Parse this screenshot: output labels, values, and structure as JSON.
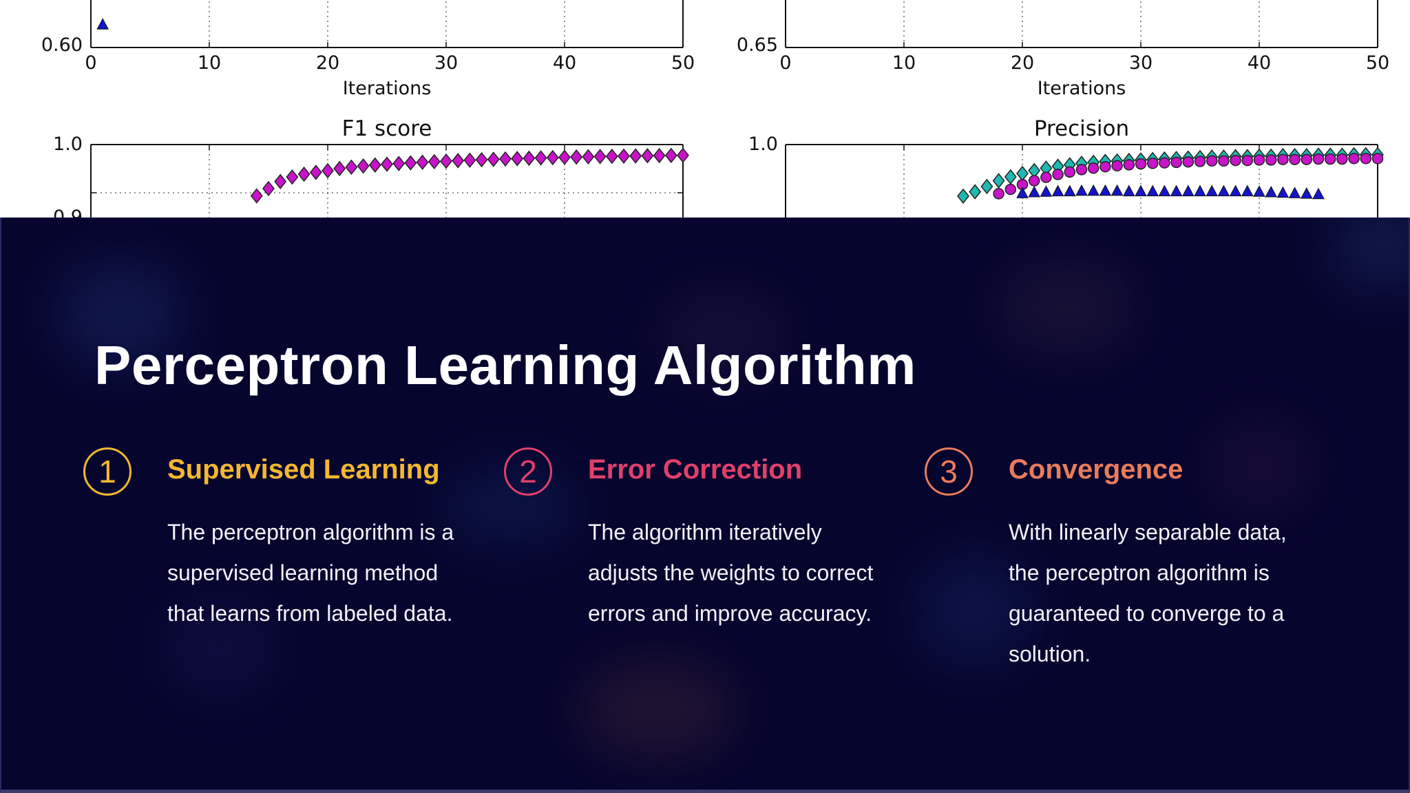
{
  "plots": {
    "top_left": {
      "y_tick": "0.60",
      "x_ticks": [
        "0",
        "10",
        "20",
        "30",
        "40",
        "50"
      ],
      "xlabel": "Iterations"
    },
    "top_right": {
      "y_tick": "0.65",
      "x_ticks": [
        "0",
        "10",
        "20",
        "30",
        "40",
        "50"
      ],
      "xlabel": "Iterations"
    },
    "f1": {
      "title": "F1 score",
      "y_ticks": [
        "1.0",
        "0.9"
      ]
    },
    "precision": {
      "title": "Precision",
      "y_ticks": [
        "1.0"
      ]
    }
  },
  "chart_data": [
    {
      "type": "scatter",
      "title": "",
      "xlabel": "Iterations",
      "ylabel": "",
      "xlim": [
        0,
        50
      ],
      "ylim": [
        0.6,
        0.7
      ],
      "series": [
        {
          "marker": "triangle",
          "color": "#1414c8",
          "x": [
            1
          ],
          "y": [
            0.63
          ]
        }
      ],
      "grid": true
    },
    {
      "type": "scatter",
      "title": "",
      "xlabel": "Iterations",
      "ylabel": "",
      "xlim": [
        0,
        50
      ],
      "ylim": [
        0.65,
        0.75
      ],
      "series": [],
      "grid": true
    },
    {
      "type": "scatter",
      "title": "F1 score",
      "xlabel": "",
      "ylabel": "",
      "xlim": [
        0,
        50
      ],
      "ylim": [
        0.5,
        1.0
      ],
      "series": [
        {
          "marker": "diamond",
          "color": "#c814c8",
          "x": [
            14,
            15,
            16,
            17,
            18,
            19,
            20,
            21,
            22,
            23,
            24,
            25,
            26,
            27,
            28,
            29,
            30,
            31,
            32,
            33,
            34,
            35,
            36,
            37,
            38,
            39,
            40,
            41,
            42,
            43,
            44,
            45,
            46,
            47,
            48,
            49,
            50
          ],
          "y": [
            0.8935,
            0.9087,
            0.9232,
            0.9326,
            0.9385,
            0.9423,
            0.9458,
            0.9502,
            0.9531,
            0.9555,
            0.9575,
            0.9592,
            0.9607,
            0.962,
            0.9633,
            0.9645,
            0.9656,
            0.9666,
            0.9676,
            0.9685,
            0.9693,
            0.9701,
            0.9709,
            0.9716,
            0.9723,
            0.9729,
            0.9735,
            0.9741,
            0.9746,
            0.9751,
            0.9756,
            0.976,
            0.9764,
            0.9768,
            0.9771,
            0.9774,
            0.9777
          ]
        }
      ],
      "grid": true
    },
    {
      "type": "scatter",
      "title": "Precision",
      "xlabel": "",
      "ylabel": "",
      "xlim": [
        0,
        50
      ],
      "ylim": [
        0.5,
        1.0
      ],
      "series": [
        {
          "marker": "diamond",
          "color": "#20b8b0",
          "x": [
            15,
            16,
            17,
            18,
            19,
            20,
            21,
            22,
            23,
            24,
            25,
            26,
            27,
            28,
            29,
            30,
            31,
            32,
            33,
            34,
            35,
            36,
            37,
            38,
            39,
            40,
            41,
            42,
            43,
            44,
            45,
            46,
            47,
            48,
            49,
            50
          ],
          "y": [
            0.893,
            0.902,
            0.913,
            0.925,
            0.933,
            0.94,
            0.946,
            0.951,
            0.955,
            0.958,
            0.961,
            0.963,
            0.965,
            0.966,
            0.967,
            0.968,
            0.969,
            0.97,
            0.971,
            0.972,
            0.973,
            0.974,
            0.974,
            0.975,
            0.975,
            0.976,
            0.976,
            0.977,
            0.977,
            0.977,
            0.978,
            0.978,
            0.978,
            0.979,
            0.979,
            0.979
          ]
        },
        {
          "marker": "circle",
          "color": "#c814c8",
          "x": [
            18,
            19,
            20,
            21,
            22,
            23,
            24,
            25,
            26,
            27,
            28,
            29,
            30,
            31,
            32,
            33,
            34,
            35,
            36,
            37,
            38,
            39,
            40,
            41,
            42,
            43,
            44,
            45,
            46,
            47,
            48,
            49,
            50
          ],
          "y": [
            0.898,
            0.907,
            0.917,
            0.925,
            0.932,
            0.938,
            0.943,
            0.948,
            0.951,
            0.954,
            0.956,
            0.958,
            0.96,
            0.961,
            0.962,
            0.963,
            0.964,
            0.965,
            0.966,
            0.966,
            0.967,
            0.967,
            0.968,
            0.968,
            0.969,
            0.969,
            0.969,
            0.97,
            0.97,
            0.97,
            0.971,
            0.971,
            0.971
          ]
        },
        {
          "marker": "triangle",
          "color": "#1414c8",
          "x": [
            20,
            21,
            22,
            23,
            24,
            25,
            26,
            27,
            28,
            29,
            30,
            31,
            32,
            33,
            34,
            35,
            36,
            37,
            38,
            39,
            40,
            41,
            42,
            43,
            44,
            45
          ],
          "y": [
            0.898,
            0.9,
            0.901,
            0.902,
            0.902,
            0.903,
            0.903,
            0.903,
            0.903,
            0.902,
            0.902,
            0.902,
            0.902,
            0.902,
            0.902,
            0.902,
            0.902,
            0.902,
            0.902,
            0.902,
            0.901,
            0.9,
            0.899,
            0.898,
            0.897,
            0.896
          ]
        }
      ],
      "grid": true
    }
  ],
  "slide": {
    "title": "Perceptron Learning Algorithm",
    "background_color": "#06052e",
    "cards": [
      {
        "number": "1",
        "title": "Supervised Learning",
        "color": "#f4b731",
        "body": "The perceptron algorithm is a supervised learning method that learns from labeled data."
      },
      {
        "number": "2",
        "title": "Error Correction",
        "color": "#e0406a",
        "body": "The algorithm iteratively adjusts the weights to correct errors and improve accuracy."
      },
      {
        "number": "3",
        "title": "Convergence",
        "color": "#e97c5c",
        "body": "With linearly separable data, the perceptron algorithm is guaranteed to converge to a solution."
      }
    ]
  }
}
